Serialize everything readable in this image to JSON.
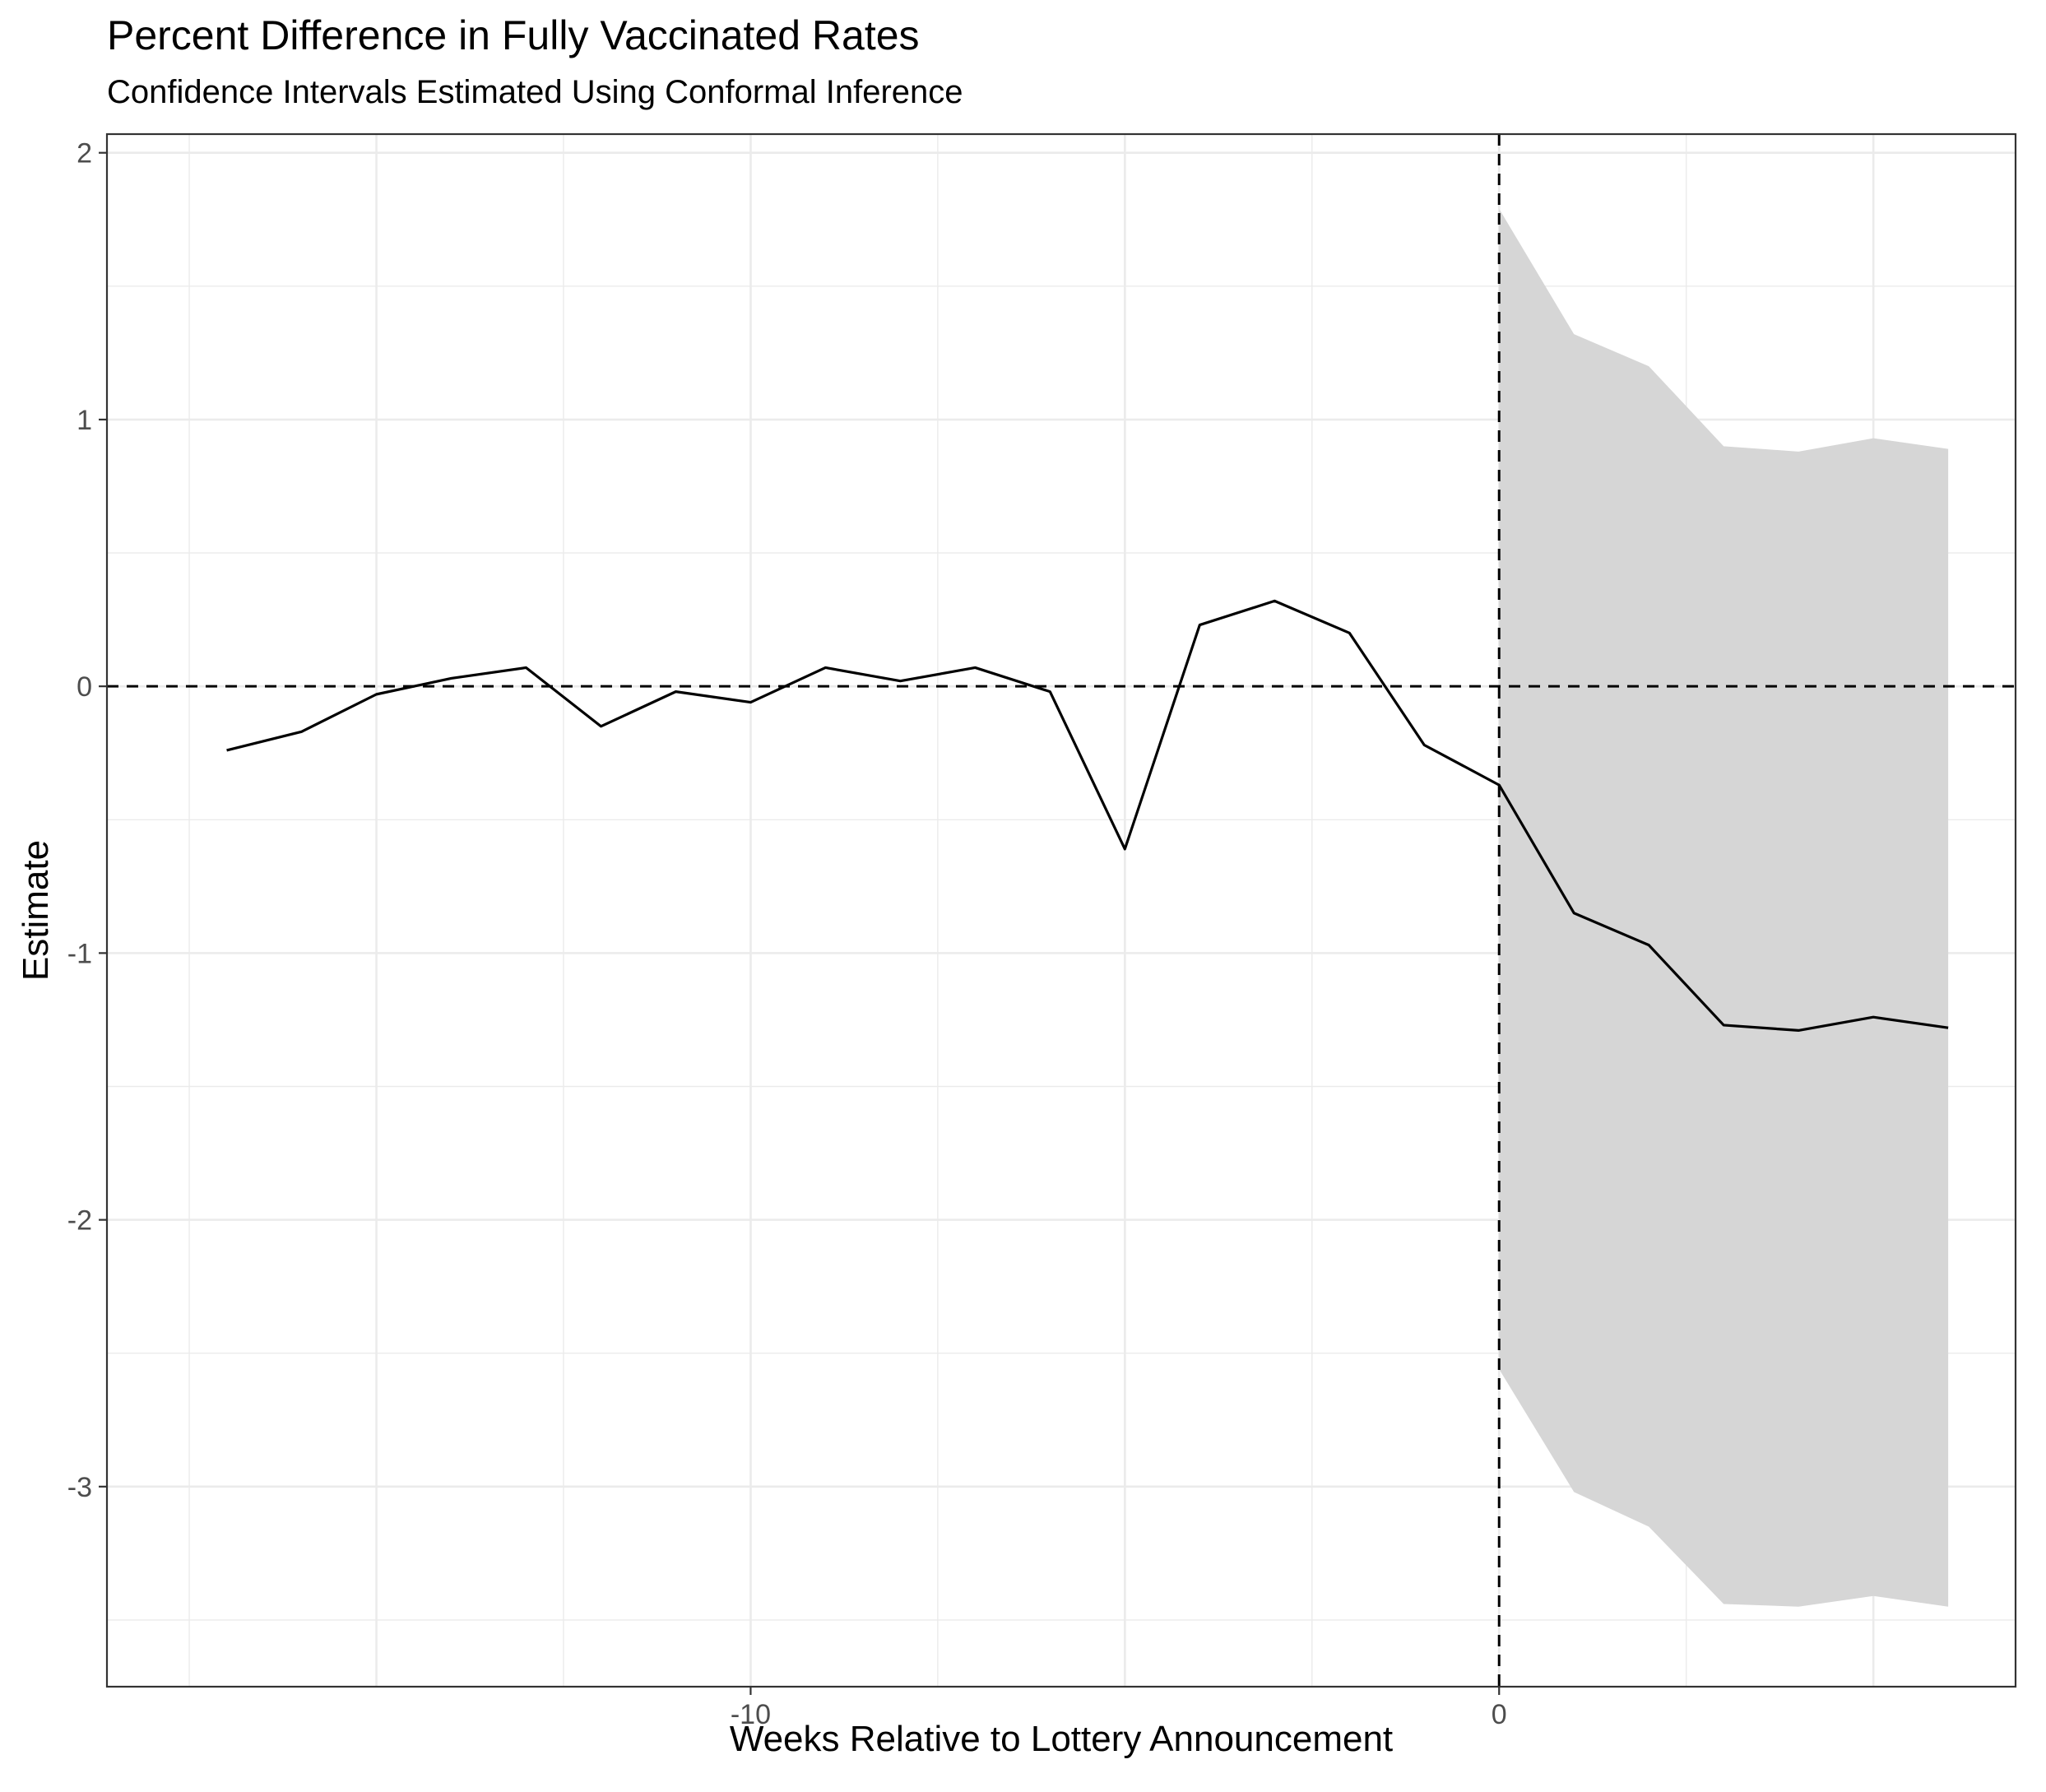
{
  "chart_data": {
    "type": "line",
    "title": "Percent Difference in Fully Vaccinated Rates",
    "subtitle": "Confidence Intervals Estimated Using Conformal Inference",
    "xlabel": "Weeks Relative to Lottery Announcement",
    "ylabel": "Estimate",
    "xlim": [
      -18.6,
      6.9
    ],
    "ylim": [
      -3.75,
      2.07
    ],
    "x_ticks": [
      -10,
      0
    ],
    "y_ticks": [
      2,
      1,
      0,
      -1,
      -2,
      -3
    ],
    "grid": true,
    "reference_lines": {
      "vertical_x": 0,
      "horizontal_y": 0,
      "style": "dashed"
    },
    "x": [
      -17,
      -16,
      -15,
      -14,
      -13,
      -12,
      -11,
      -10,
      -9,
      -8,
      -7,
      -6,
      -5,
      -4,
      -3,
      -2,
      -1,
      0,
      1,
      2,
      3,
      4,
      5,
      6
    ],
    "estimate": [
      -0.24,
      -0.17,
      -0.03,
      0.03,
      0.07,
      -0.15,
      -0.02,
      -0.06,
      0.07,
      0.02,
      0.07,
      -0.02,
      -0.61,
      0.23,
      0.32,
      0.2,
      -0.22,
      -0.37,
      -0.85,
      -0.97,
      -1.27,
      -1.29,
      -1.24,
      -1.28
    ],
    "ci_x": [
      0,
      1,
      2,
      3,
      4,
      5,
      6
    ],
    "ci_upper": [
      1.79,
      1.32,
      1.2,
      0.9,
      0.88,
      0.93,
      0.89
    ],
    "ci_lower": [
      -2.56,
      -3.02,
      -3.15,
      -3.44,
      -3.45,
      -3.41,
      -3.45
    ],
    "colors": {
      "line": "#000000",
      "ribbon": "#d6d6d6",
      "grid": "#ebebeb",
      "axis_text": "#4d4d4d"
    }
  }
}
